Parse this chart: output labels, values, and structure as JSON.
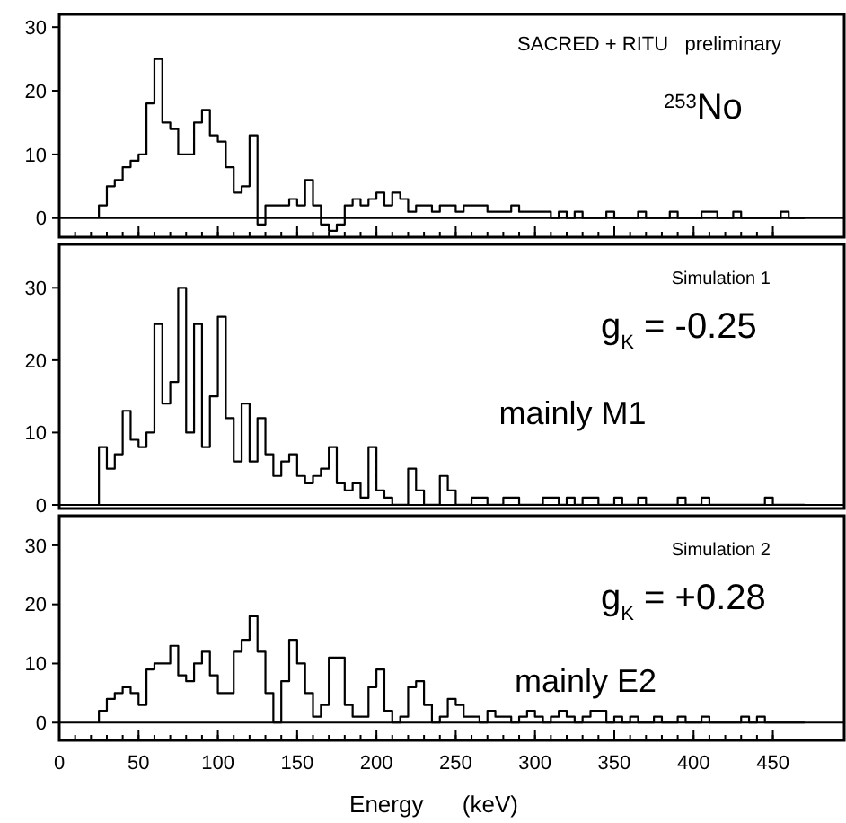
{
  "chart_data": [
    {
      "type": "histogram",
      "color": "#000000",
      "tick_labels": "y",
      "xlim": [
        0,
        495
      ],
      "ylim": [
        -3,
        32
      ],
      "yticks": [
        0,
        10,
        20,
        30
      ],
      "xticks": [
        {
          "value": 0,
          "label": null
        },
        {
          "value": 50,
          "label": null
        },
        {
          "value": 100,
          "label": null
        },
        {
          "value": 150,
          "label": null
        },
        {
          "value": 200,
          "label": null
        },
        {
          "value": 250,
          "label": null
        },
        {
          "value": 300,
          "label": null
        },
        {
          "value": 350,
          "label": null
        },
        {
          "value": 400,
          "label": null
        },
        {
          "value": 450,
          "label": null
        }
      ],
      "ref_lines": [
        {
          "axis": "y",
          "value": 0
        }
      ],
      "annotations": [
        "SACRED + RITU   preliminary",
        "$^{253}$No"
      ],
      "bins": [
        25,
        30,
        35,
        40,
        45,
        50,
        55,
        60,
        65,
        70,
        75,
        80,
        85,
        90,
        95,
        100,
        105,
        110,
        115,
        120,
        125,
        130,
        135,
        140,
        145,
        150,
        155,
        160,
        165,
        170,
        175,
        180,
        185,
        190,
        195,
        200,
        205,
        210,
        215,
        220,
        225,
        230,
        235,
        240,
        245,
        250,
        255,
        260,
        265,
        270,
        275,
        280,
        285,
        290,
        295,
        300,
        305,
        310,
        315,
        320,
        325,
        330,
        335,
        340,
        345,
        350,
        355,
        360,
        365,
        370,
        375,
        380,
        385,
        390,
        395,
        400,
        405,
        410,
        415,
        420,
        425,
        430,
        435,
        440,
        445,
        450,
        455,
        460,
        465,
        470
      ],
      "values": [
        2,
        5,
        6,
        8,
        9,
        10,
        18,
        25,
        15,
        14,
        10,
        10,
        15,
        17,
        13,
        12,
        8,
        4,
        5,
        13,
        -1,
        2,
        2,
        2,
        3,
        2,
        6,
        2,
        -1,
        -2,
        -1,
        2,
        3,
        2,
        3,
        4,
        2,
        4,
        3,
        1,
        2,
        2,
        1,
        2,
        2,
        1,
        2,
        2,
        2,
        1,
        1,
        1,
        2,
        1,
        1,
        1,
        1,
        0,
        1,
        0,
        1,
        0,
        0,
        0,
        1,
        0,
        0,
        0,
        1,
        0,
        0,
        0,
        1,
        0,
        0,
        0,
        1,
        1,
        0,
        0,
        1,
        0,
        0,
        0,
        0,
        0,
        1,
        0,
        0
      ]
    },
    {
      "type": "histogram",
      "color": "#000000",
      "tick_labels": "y",
      "xlim": [
        0,
        495
      ],
      "ylim": [
        -0.5,
        36
      ],
      "yticks": [
        0,
        10,
        20,
        30
      ],
      "ref_lines": [
        {
          "axis": "y",
          "value": 0
        }
      ],
      "annotations": [
        "Simulation 1",
        "g$_{K}$ = -0.25",
        "mainly M1"
      ],
      "bins": [
        25,
        30,
        35,
        40,
        45,
        50,
        55,
        60,
        65,
        70,
        75,
        80,
        85,
        90,
        95,
        100,
        105,
        110,
        115,
        120,
        125,
        130,
        135,
        140,
        145,
        150,
        155,
        160,
        165,
        170,
        175,
        180,
        185,
        190,
        195,
        200,
        205,
        210,
        215,
        220,
        225,
        230,
        235,
        240,
        245,
        250,
        255,
        260,
        265,
        270,
        275,
        280,
        285,
        290,
        295,
        300,
        305,
        310,
        315,
        320,
        325,
        330,
        335,
        340,
        345,
        350,
        355,
        360,
        365,
        370,
        375,
        380,
        385,
        390,
        395,
        400,
        405,
        410,
        415,
        420,
        425,
        430,
        435,
        440,
        445,
        450,
        455,
        460,
        465,
        470
      ],
      "values": [
        8,
        5,
        7,
        13,
        9,
        8,
        10,
        25,
        14,
        17,
        30,
        10,
        25,
        8,
        15,
        26,
        12,
        6,
        14,
        6,
        12,
        7,
        4,
        6,
        7,
        4,
        3,
        4,
        5,
        8,
        3,
        2,
        3,
        1,
        8,
        2,
        1,
        0,
        0,
        5,
        2,
        0,
        0,
        4,
        2,
        0,
        0,
        1,
        1,
        0,
        0,
        1,
        1,
        0,
        0,
        0,
        1,
        1,
        0,
        1,
        0,
        1,
        1,
        0,
        0,
        1,
        0,
        0,
        1,
        0,
        0,
        0,
        0,
        1,
        0,
        0,
        1,
        0,
        0,
        0,
        0,
        0,
        0,
        0,
        1,
        0,
        0,
        0,
        0
      ]
    },
    {
      "type": "histogram",
      "color": "#000000",
      "xlim": [
        0,
        495
      ],
      "ylim": [
        -3,
        35
      ],
      "yticks": [
        0,
        10,
        20,
        30
      ],
      "xticks": [
        0,
        50,
        100,
        150,
        200,
        250,
        300,
        350,
        400,
        450
      ],
      "xlabel": "Energy      (keV)",
      "ref_lines": [
        {
          "axis": "y",
          "value": 0
        }
      ],
      "annotations": [
        "Simulation 2",
        "g$_{K}$ = +0.28",
        "mainly E2"
      ],
      "bins": [
        25,
        30,
        35,
        40,
        45,
        50,
        55,
        60,
        65,
        70,
        75,
        80,
        85,
        90,
        95,
        100,
        105,
        110,
        115,
        120,
        125,
        130,
        135,
        140,
        145,
        150,
        155,
        160,
        165,
        170,
        175,
        180,
        185,
        190,
        195,
        200,
        205,
        210,
        215,
        220,
        225,
        230,
        235,
        240,
        245,
        250,
        255,
        260,
        265,
        270,
        275,
        280,
        285,
        290,
        295,
        300,
        305,
        310,
        315,
        320,
        325,
        330,
        335,
        340,
        345,
        350,
        355,
        360,
        365,
        370,
        375,
        380,
        385,
        390,
        395,
        400,
        405,
        410,
        415,
        420,
        425,
        430,
        435,
        440,
        445,
        450,
        455,
        460,
        465,
        470
      ],
      "values": [
        2,
        4,
        5,
        6,
        5,
        3,
        9,
        10,
        10,
        13,
        8,
        7,
        10,
        12,
        8,
        5,
        5,
        12,
        14,
        18,
        12,
        5,
        0,
        7,
        14,
        10,
        5,
        1,
        3,
        11,
        11,
        3,
        1,
        1,
        6,
        9,
        2,
        0,
        1,
        6,
        7,
        3,
        0,
        1,
        4,
        3,
        1,
        1,
        0,
        2,
        1,
        1,
        0,
        1,
        2,
        1,
        0,
        1,
        2,
        1,
        0,
        1,
        2,
        2,
        0,
        1,
        0,
        1,
        0,
        0,
        1,
        0,
        0,
        1,
        0,
        0,
        1,
        0,
        0,
        0,
        0,
        1,
        0,
        1,
        0,
        0,
        0,
        0,
        0
      ]
    }
  ]
}
